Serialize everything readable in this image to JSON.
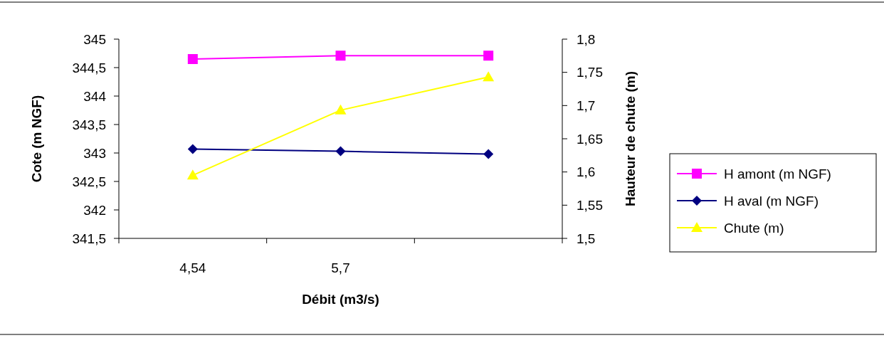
{
  "chart_data": {
    "type": "line",
    "xlabel": "Débit (m3/s)",
    "ylabel": "Cote (m NGF)",
    "y2label": "Hauteur de chute (m)",
    "categories": [
      "4,54",
      "5,7",
      null
    ],
    "ylim": [
      341.5,
      345
    ],
    "yticks": [
      {
        "value": 341.5,
        "label": "341,5"
      },
      342,
      {
        "value": 342.5,
        "label": "342,5"
      },
      343,
      {
        "value": 343.5,
        "label": "343,5"
      },
      344,
      {
        "value": 344.5,
        "label": "344,5"
      },
      345
    ],
    "y2lim": [
      1.5,
      1.8
    ],
    "y2ticks": [
      {
        "value": 1.5,
        "label": "1,5"
      },
      {
        "value": 1.55,
        "label": "1,55"
      },
      {
        "value": 1.6,
        "label": "1,6"
      },
      {
        "value": 1.65,
        "label": "1,65"
      },
      {
        "value": 1.7,
        "label": "1,7"
      },
      {
        "value": 1.75,
        "label": "1,75"
      },
      {
        "value": 1.8,
        "label": "1,8"
      }
    ],
    "grid": false,
    "legend": "right",
    "series": [
      {
        "name": "H amont (m NGF)",
        "color": "#ff00ff",
        "marker": "square",
        "values": [
          344.65,
          344.71,
          344.71
        ]
      },
      {
        "name": "H aval (m NGF)",
        "color": "#000080",
        "marker": "diamond",
        "values": [
          343.07,
          343.03,
          342.98
        ]
      },
      {
        "name": "Chute (m)",
        "color": "#ffff00",
        "marker": "triangle",
        "axis": "y2",
        "values": [
          1.595,
          1.693,
          1.743
        ]
      }
    ]
  }
}
